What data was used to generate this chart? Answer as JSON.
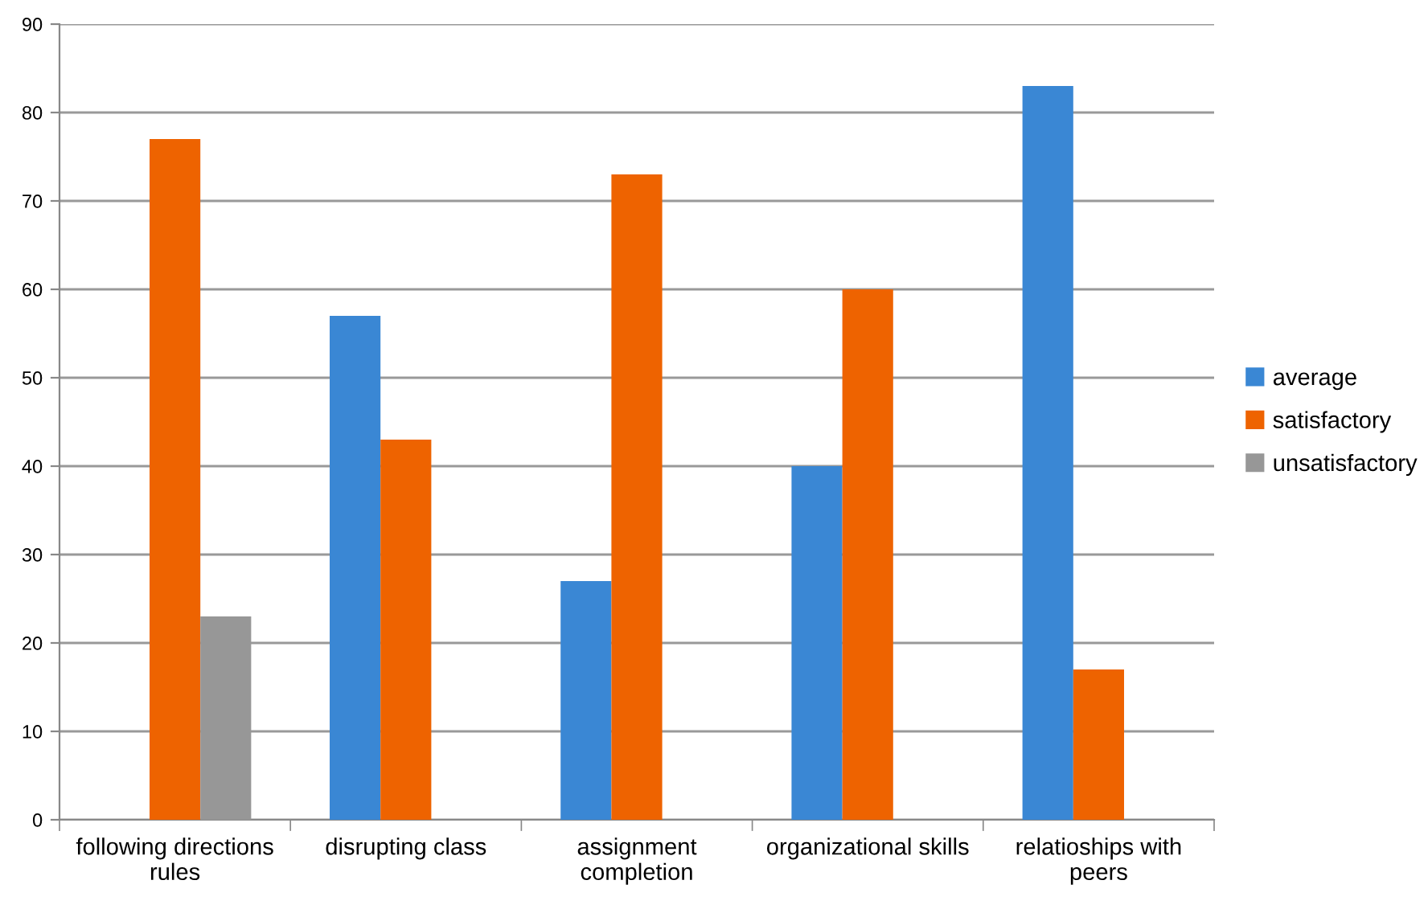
{
  "chart_data": {
    "type": "bar",
    "categories": [
      "following directions\nrules",
      "disrupting class",
      "assignment\ncompletion",
      "organizational skills",
      "relatioships with\npeers"
    ],
    "series": [
      {
        "name": "average",
        "color": "#3a87d4",
        "values": [
          null,
          57,
          27,
          40,
          83
        ]
      },
      {
        "name": "satisfactory",
        "color": "#ee6300",
        "values": [
          77,
          43,
          73,
          60,
          17
        ]
      },
      {
        "name": "unsatisfactory",
        "color": "#979797",
        "values": [
          23,
          null,
          null,
          null,
          null
        ]
      }
    ],
    "ylim": [
      0,
      90
    ],
    "yticks": [
      0,
      10,
      20,
      30,
      40,
      50,
      60,
      70,
      80,
      90
    ],
    "grid": "y",
    "legend": "right"
  }
}
